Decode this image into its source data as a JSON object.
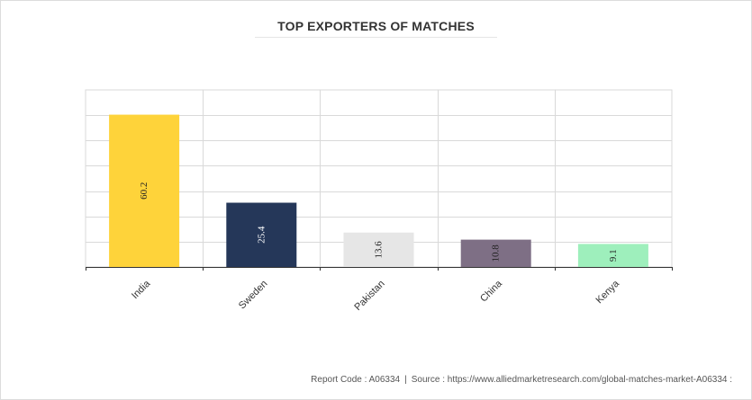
{
  "title": "TOP EXPORTERS OF MATCHES",
  "footer": {
    "report_code": "Report Code : A06334",
    "separator": "|",
    "source": "Source : https://www.alliedmarketresearch.com/global-matches-market-A06334 :"
  },
  "chart_data": {
    "type": "bar",
    "title": "TOP EXPORTERS OF MATCHES",
    "xlabel": "",
    "ylabel": "",
    "categories": [
      "India",
      "Sweden",
      "Pakistan",
      "China",
      "Kenya"
    ],
    "values": [
      60.2,
      25.4,
      13.6,
      10.8,
      9.1
    ],
    "labels": [
      "60.2",
      "25.4",
      "13.6",
      "10.8",
      "9.1"
    ],
    "colors": [
      "#fed33a",
      "#253759",
      "#e6e6e6",
      "#7e6f85",
      "#9eefbc"
    ],
    "ylim": [
      0,
      70
    ],
    "grid": true,
    "legend": "none"
  }
}
